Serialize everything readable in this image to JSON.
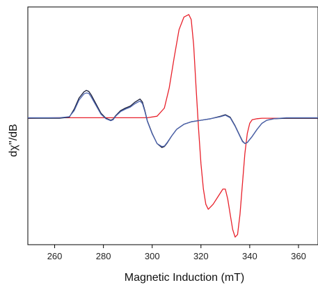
{
  "chart_data": {
    "type": "line",
    "title": "",
    "xlabel": "Magnetic Induction (mT)",
    "ylabel": "dχ''/dB",
    "xlim": [
      249,
      368
    ],
    "ylim": [
      -2.5,
      2.2
    ],
    "xticks": [
      260,
      280,
      300,
      320,
      340,
      360
    ],
    "yticks": [],
    "grid": false,
    "legend": "none",
    "series": [
      {
        "color": "#e8202a",
        "x": [
          249,
          262,
          270,
          280,
          290,
          298,
          302,
          305,
          307,
          309,
          311,
          313,
          315,
          316,
          317,
          318,
          319,
          320,
          321,
          322,
          323,
          325,
          327,
          329,
          330,
          331,
          332,
          333,
          334,
          335,
          336,
          337,
          338,
          339,
          340,
          341,
          343,
          345,
          350,
          360,
          368
        ],
        "y": [
          0.0,
          0.01,
          0.01,
          0.01,
          0.01,
          0.01,
          0.04,
          0.2,
          0.6,
          1.2,
          1.75,
          2.0,
          2.05,
          1.95,
          1.45,
          0.6,
          -0.2,
          -0.9,
          -1.4,
          -1.7,
          -1.8,
          -1.7,
          -1.55,
          -1.4,
          -1.4,
          -1.6,
          -1.9,
          -2.2,
          -2.35,
          -2.3,
          -1.9,
          -1.3,
          -0.7,
          -0.3,
          -0.1,
          -0.03,
          -0.01,
          0.0,
          0.0,
          0.0,
          0.0
        ]
      },
      {
        "color": "#1a1f3c",
        "x": [
          249,
          262,
          266,
          268,
          270,
          272,
          273,
          274,
          275,
          277,
          279,
          281,
          283,
          284,
          285,
          287,
          289,
          291,
          293,
          295,
          296,
          297,
          298,
          300,
          302,
          304,
          305,
          306,
          308,
          310,
          313,
          316,
          320,
          324,
          328,
          330,
          332,
          334,
          336,
          337,
          338,
          339,
          341,
          343,
          345,
          347,
          350,
          355,
          360,
          368
        ],
        "y": [
          0.0,
          0.0,
          0.02,
          0.18,
          0.4,
          0.52,
          0.55,
          0.53,
          0.46,
          0.28,
          0.1,
          0.0,
          -0.04,
          -0.02,
          0.05,
          0.15,
          0.2,
          0.24,
          0.32,
          0.38,
          0.32,
          0.15,
          -0.05,
          -0.3,
          -0.5,
          -0.58,
          -0.56,
          -0.5,
          -0.35,
          -0.22,
          -0.12,
          -0.07,
          -0.04,
          -0.01,
          0.04,
          0.07,
          0.02,
          -0.15,
          -0.35,
          -0.45,
          -0.5,
          -0.48,
          -0.36,
          -0.22,
          -0.1,
          -0.04,
          -0.01,
          0.0,
          0.0,
          0.0
        ]
      },
      {
        "color": "#4a62ad",
        "x": [
          249,
          262,
          266,
          268,
          270,
          272,
          273,
          274,
          275,
          277,
          279,
          281,
          283,
          284,
          285,
          287,
          289,
          291,
          293,
          295,
          296,
          297,
          298,
          300,
          302,
          304,
          305,
          306,
          308,
          310,
          313,
          316,
          320,
          324,
          328,
          330,
          332,
          334,
          336,
          337,
          338,
          339,
          341,
          343,
          345,
          347,
          350,
          355,
          360,
          368
        ],
        "y": [
          0.01,
          0.01,
          0.03,
          0.15,
          0.36,
          0.48,
          0.5,
          0.49,
          0.42,
          0.25,
          0.08,
          -0.01,
          -0.05,
          -0.03,
          0.04,
          0.13,
          0.18,
          0.22,
          0.29,
          0.34,
          0.29,
          0.13,
          -0.06,
          -0.31,
          -0.5,
          -0.56,
          -0.55,
          -0.49,
          -0.35,
          -0.22,
          -0.12,
          -0.07,
          -0.04,
          -0.01,
          0.03,
          0.06,
          0.01,
          -0.16,
          -0.36,
          -0.46,
          -0.5,
          -0.48,
          -0.36,
          -0.22,
          -0.1,
          -0.04,
          -0.01,
          0.01,
          0.01,
          0.01
        ]
      }
    ]
  }
}
